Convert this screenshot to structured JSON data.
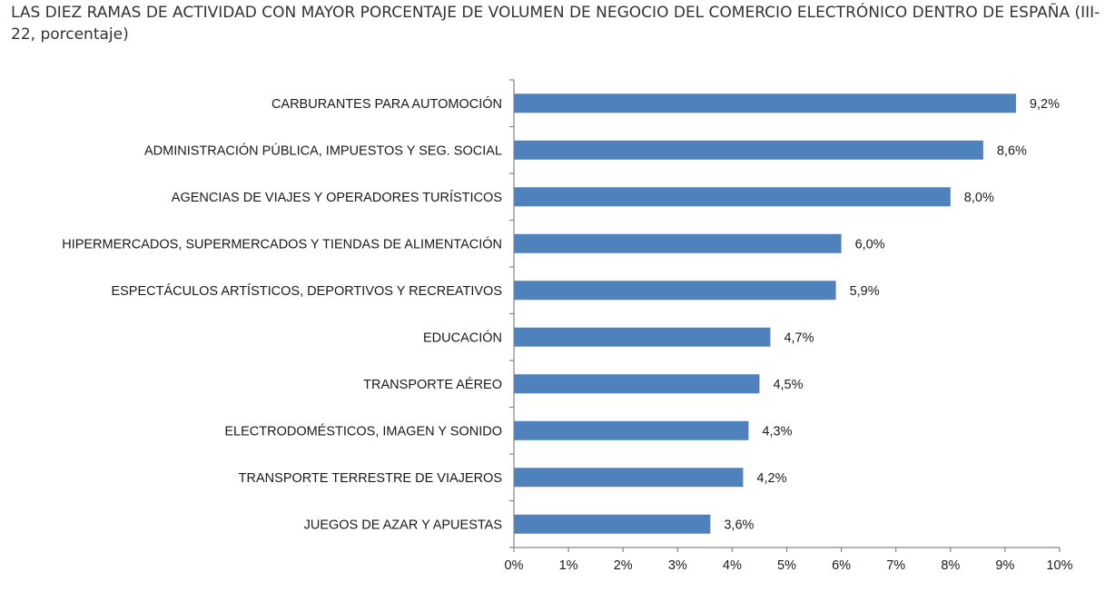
{
  "chart_data": {
    "type": "bar",
    "orientation": "horizontal",
    "title": "LAS DIEZ RAMAS DE ACTIVIDAD CON MAYOR PORCENTAJE DE VOLUMEN DE NEGOCIO DEL COMERCIO ELECTRÓNICO DENTRO DE ESPAÑA (III-22, porcentaje)",
    "categories": [
      "CARBURANTES PARA AUTOMOCIÓN",
      "ADMINISTRACIÓN PÚBLICA, IMPUESTOS Y SEG. SOCIAL",
      "AGENCIAS DE VIAJES Y OPERADORES TURÍSTICOS",
      "HIPERMERCADOS, SUPERMERCADOS Y TIENDAS DE ALIMENTACIÓN",
      "ESPECTÁCULOS ARTÍSTICOS, DEPORTIVOS Y RECREATIVOS",
      "EDUCACIÓN",
      "TRANSPORTE AÉREO",
      "ELECTRODOMÉSTICOS,  IMAGEN Y SONIDO",
      "TRANSPORTE TERRESTRE DE VIAJEROS",
      "JUEGOS DE AZAR Y APUESTAS"
    ],
    "values": [
      9.2,
      8.6,
      8.0,
      6.0,
      5.9,
      4.7,
      4.5,
      4.3,
      4.2,
      3.6
    ],
    "data_labels": [
      "9,2%",
      "8,6%",
      "8,0%",
      "6,0%",
      "5,9%",
      "4,7%",
      "4,5%",
      "4,3%",
      "4,2%",
      "3,6%"
    ],
    "xlim": [
      0,
      10
    ],
    "xticks": [
      0,
      1,
      2,
      3,
      4,
      5,
      6,
      7,
      8,
      9,
      10
    ],
    "xtick_labels": [
      "0%",
      "1%",
      "2%",
      "3%",
      "4%",
      "5%",
      "6%",
      "7%",
      "8%",
      "9%",
      "10%"
    ],
    "xlabel": "",
    "ylabel": "",
    "grid": false,
    "legend": "none",
    "bar_color": "#4f81bd",
    "axis_color": "#868686"
  }
}
